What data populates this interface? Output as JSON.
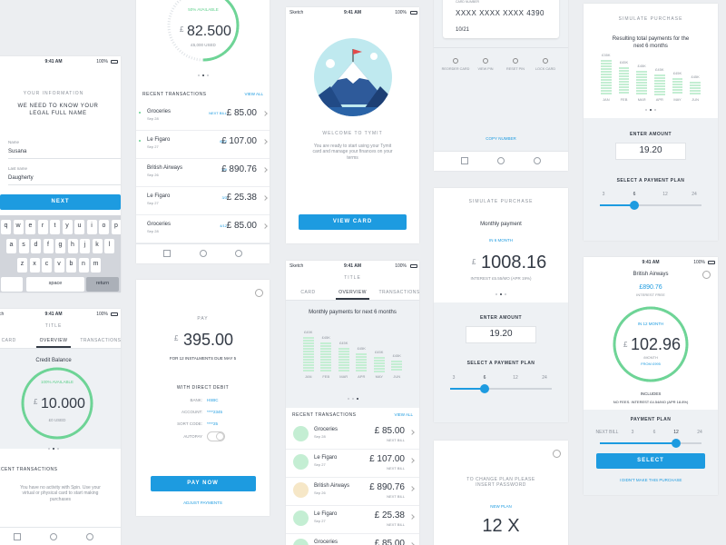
{
  "screens": {
    "info": {
      "time": "9:41 AM",
      "battery": "100%",
      "heading": "YOUR INFORMATION",
      "prompt": "WE NEED TO KNOW YOUR LEGAL FULL NAME",
      "name_label": "Name",
      "name": "Susana",
      "last_label": "Last name",
      "last": "Daugherty",
      "button": "NEXT",
      "keys": [
        [
          "q",
          "w",
          "e",
          "r",
          "t",
          "y",
          "u",
          "i",
          "o",
          "p"
        ],
        [
          "a",
          "s",
          "d",
          "f",
          "g",
          "h",
          "j",
          "k",
          "l"
        ],
        [
          "z",
          "x",
          "c",
          "v",
          "b",
          "n",
          "m"
        ]
      ],
      "space": "space",
      "return": "return"
    },
    "overview1": {
      "carrier": "Sketch",
      "time": "9:41 AM",
      "battery": "100%",
      "title": "TITLE",
      "tabs": [
        "CARD",
        "OVERVIEW",
        "TRANSACTIONS"
      ],
      "balance_label": "Credit Balance",
      "available": "100% AVAILABLE",
      "currency": "£",
      "amount": "10.000",
      "used": "£0 USED",
      "recent": "RECENT TRANSACTIONS",
      "empty": "You have no activity with Spin. Use your virtual or physical card to start making purchases"
    },
    "transactions": {
      "available": "50% AVAILABLE",
      "currency": "£",
      "amount": "82.500",
      "used": "£5,000 USED",
      "recent": "RECENT TRANSACTIONS",
      "view_all": "VIEW ALL",
      "rows": [
        {
          "name": "Groceries",
          "date": "Sep 28",
          "tag": "NEXT BILL",
          "amount": "£ 85.00"
        },
        {
          "name": "Le Figaro",
          "date": "Sep 27",
          "tag": "8/12",
          "amount": "£ 107.00"
        },
        {
          "name": "British Airways",
          "date": "Sep 26",
          "tag": "6/9",
          "amount": "£ 890.76"
        },
        {
          "name": "Le Figaro",
          "date": "Sep 27",
          "tag": "3/3",
          "amount": "£ 25.38"
        },
        {
          "name": "Groceries",
          "date": "Sep 28",
          "tag": "4/12",
          "amount": "£ 85.00"
        }
      ]
    },
    "pay": {
      "heading": "PAY",
      "currency": "£",
      "amount": "395.00",
      "due": "FOR 12 INSTALMENTS DUE MAY 5",
      "method": "WITH DIRECT DEBIT",
      "details": [
        {
          "label": "BANK:",
          "value": "HSBC"
        },
        {
          "label": "ACCOUNT:",
          "value": "****2345"
        },
        {
          "label": "SORT CODE:",
          "value": "****25"
        }
      ],
      "autopay": "AUTOPAY",
      "button": "PAY NOW",
      "adjust": "ADJUST PAYMENTS"
    },
    "welcome": {
      "carrier": "Sketch",
      "time": "9:41 AM",
      "battery": "100%",
      "heading": "WELCOME TO TYMIT",
      "body": "You are ready to start using your Tymit card and manage your finances on your terms",
      "button": "VIEW CARD"
    },
    "overview2": {
      "carrier": "Sketch",
      "time": "9:41 AM",
      "battery": "100%",
      "title": "TITLE",
      "tabs": [
        "CARD",
        "OVERVIEW",
        "TRANSACTIONS"
      ],
      "chart_title": "Monthly payments for next 6 months",
      "bar_labels": [
        "£45K",
        "£45K",
        "£45K",
        "£45K",
        "£45K",
        "£45K"
      ],
      "months": [
        "JAN",
        "FEB",
        "MAR",
        "APR",
        "MAY",
        "JUN"
      ],
      "recent": "RECENT TRANSACTIONS",
      "view_all": "VIEW ALL",
      "rows": [
        {
          "name": "Groceries",
          "date": "Sep 28",
          "amount": "£ 85.00",
          "tag": "NEXT BILL"
        },
        {
          "name": "Le Figaro",
          "date": "Sep 27",
          "amount": "£ 107.00",
          "tag": "NEXT BILL"
        },
        {
          "name": "British Airways",
          "date": "Sep 26",
          "amount": "£ 890.76",
          "tag": "NEXT BILL"
        },
        {
          "name": "Le Figaro",
          "date": "Sep 27",
          "amount": "£ 25.38",
          "tag": "NEXT BILL"
        },
        {
          "name": "Groceries",
          "date": "Sep 28",
          "amount": "£ 85.00",
          "tag": "NEXT BILL"
        }
      ]
    },
    "card": {
      "number_label": "CARD NUMBER",
      "number": "XXXX  XXXX  XXXX  4390",
      "expiry": "10/21",
      "actions": [
        "REORDER CARD",
        "VIEW PIN",
        "RESET PIN",
        "LOCK CARD"
      ],
      "copy": "COPY NUMBER"
    },
    "simulate": {
      "heading": "SIMULATE PURCHASE",
      "label": "Monthly payment",
      "period": "IN 6 MONTH",
      "currency": "£",
      "amount": "1008.16",
      "interest": "INTEREST £5.55/MO (APR 19%)",
      "enter": "ENTER AMOUNT",
      "input": "19.20",
      "plan": "SELECT A PAYMENT PLAN",
      "options": [
        "3",
        "6",
        "12",
        "24"
      ]
    },
    "change_plan": {
      "prompt": "TO CHANGE PLAN PLEASE INSERT PASSWORD",
      "label": "NEW PLAN",
      "plan": "12 X"
    },
    "simulate_total": {
      "heading": "SIMULATE PURCHASE",
      "label": "Resulting total payments for the next 6 months",
      "bar_labels": [
        "£35K",
        "£45K",
        "£45K",
        "£45K",
        "£45K",
        "£45K"
      ],
      "months": [
        "JAN",
        "FEB",
        "MAR",
        "APR",
        "MAY",
        "JUN"
      ],
      "enter": "ENTER AMOUNT",
      "input": "19.20",
      "plan": "SELECT A PAYMENT PLAN",
      "options": [
        "3",
        "6",
        "12",
        "24"
      ]
    },
    "purchase": {
      "time": "9:41 AM",
      "battery": "100%",
      "merchant": "British Airways",
      "total": "£890.76",
      "interest_free": "INTEREST FREE",
      "period": "IN 12 MONTH",
      "currency": "£",
      "amount": "102.96",
      "per": "/MONTH",
      "from": "FROM £995",
      "includes": "INCLUDES",
      "fees": "NO FEES. INTEREST £4.54/MO (APR 18.8%)",
      "plan": "PAYMENT PLAN",
      "options": [
        "NEXT BILL",
        "3",
        "6",
        "12",
        "24"
      ],
      "button": "SELECT",
      "dispute": "I DIDN'T MAKE THIS PURCHASE"
    }
  }
}
